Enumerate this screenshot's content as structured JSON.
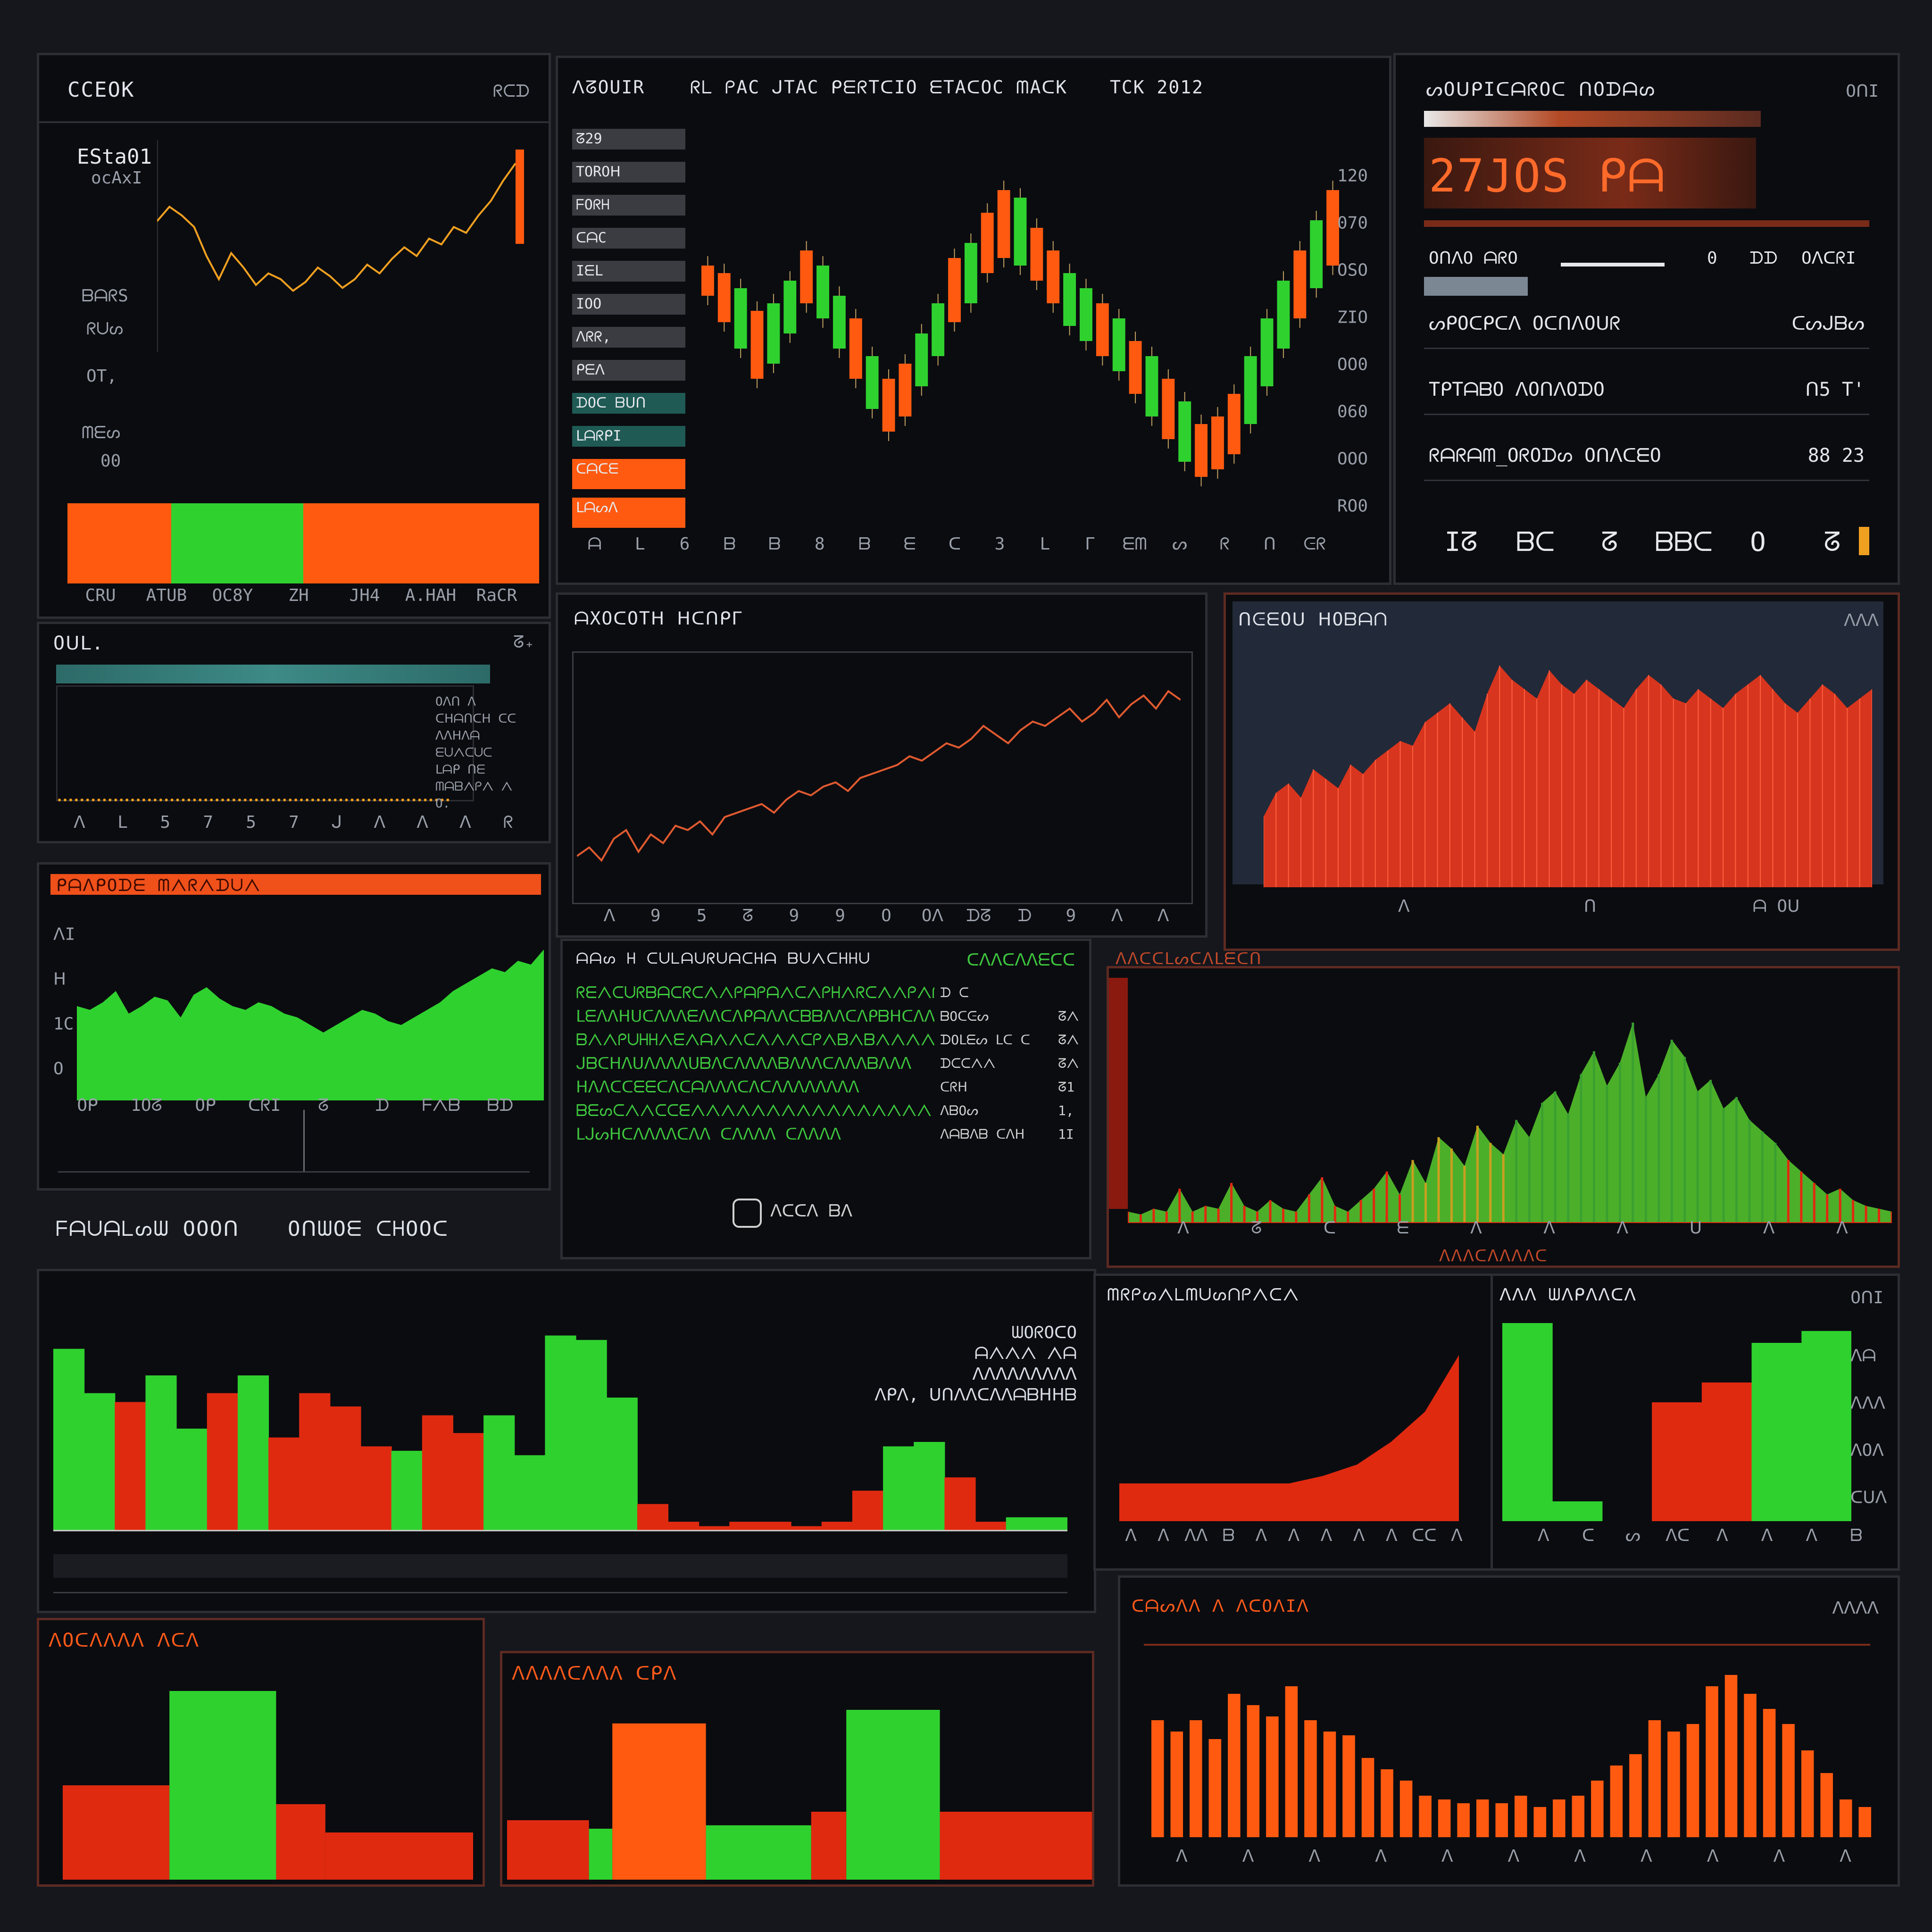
{
  "palette": {
    "green": "#2fd12f",
    "orange": "#ff5a10",
    "red": "#e02a10",
    "gold": "#f0a020",
    "panel_bg": "#0b0c10",
    "page_bg": "#15171d"
  },
  "p1": {
    "title": "CCEOK",
    "tag": "ᖇᑕᗪ",
    "label_a": "ESta01",
    "label_b": "ocAxI",
    "label_c": "ᗷᗩᖇS",
    "label_d": "ᖇᑌᔕ",
    "label_e": "OT,",
    "label_f": "ᗰᗴᔕ",
    "label_g": "00",
    "xticks": [
      "CRU",
      "ATUB",
      "OC8Y",
      "ZH",
      "JH4",
      "A.HAH",
      "RaCR"
    ],
    "line_values": [
      42,
      47,
      44,
      40,
      30,
      22,
      31,
      26,
      20,
      24,
      22,
      18,
      21,
      26,
      23,
      19,
      22,
      27,
      24,
      29,
      33,
      30,
      36,
      34,
      40,
      38,
      44,
      49,
      56,
      62
    ],
    "bars": [
      {
        "c": "orange",
        "w": 0.22
      },
      {
        "c": "green",
        "w": 0.28
      },
      {
        "c": "orange",
        "w": 0.5
      }
    ]
  },
  "p2": {
    "title_left": "ᐱᘔOUIR",
    "title_main": "ᖇᒪ ᑭAC ᒍTAC ᑭᗴᖇTᑕIO ᗴTAᑕOC ᗰAᑕK",
    "title_right": "TCK 2012",
    "sidebar": [
      "ᘔ29",
      "TOROᕼ",
      "ᖴOᖇᕼ",
      "ᑕᗩC",
      "IᗴL",
      "IOO",
      "ᐱᖇᖇ,",
      "ᑭᗴᐱ",
      "ᗪOᑕ ᗷᑌᑎ",
      "ᒪᗩᖇᑭI",
      "ᑕᗩᑕᗴ",
      "ᒪᗩᔕᐱ"
    ],
    "yticks": [
      "120",
      "070",
      "OSO",
      "ZIO",
      "OO0",
      "060",
      "OOO",
      "RO0"
    ],
    "xticks": [
      "ᗩ",
      "ᒪ",
      "6",
      "ᗷ",
      "ᗷ",
      "8",
      "ᗷ",
      "ᗴ",
      "ᑕ",
      "3",
      "ᒪ",
      "ᒥ",
      "ᗴᗰ",
      "ᔕ",
      "ᖇ",
      "ᑎ",
      "ᕮᖇ"
    ],
    "candles": [
      [
        62,
        70
      ],
      [
        55,
        68
      ],
      [
        48,
        64
      ],
      [
        40,
        58
      ],
      [
        44,
        60
      ],
      [
        52,
        66
      ],
      [
        60,
        74
      ],
      [
        56,
        70
      ],
      [
        48,
        62
      ],
      [
        40,
        56
      ],
      [
        32,
        46
      ],
      [
        26,
        40
      ],
      [
        30,
        44
      ],
      [
        38,
        52
      ],
      [
        46,
        60
      ],
      [
        55,
        72
      ],
      [
        60,
        76
      ],
      [
        68,
        84
      ],
      [
        72,
        90
      ],
      [
        70,
        88
      ],
      [
        66,
        80
      ],
      [
        60,
        74
      ],
      [
        54,
        68
      ],
      [
        50,
        64
      ],
      [
        46,
        60
      ],
      [
        42,
        56
      ],
      [
        36,
        50
      ],
      [
        30,
        46
      ],
      [
        24,
        40
      ],
      [
        18,
        34
      ],
      [
        14,
        28
      ],
      [
        16,
        30
      ],
      [
        20,
        36
      ],
      [
        28,
        46
      ],
      [
        38,
        56
      ],
      [
        48,
        66
      ],
      [
        56,
        74
      ],
      [
        64,
        82
      ],
      [
        70,
        90
      ]
    ],
    "candle_colors": [
      "orange",
      "orange",
      "green",
      "orange",
      "green",
      "green",
      "orange",
      "green",
      "green",
      "orange",
      "green",
      "orange",
      "orange",
      "green",
      "green",
      "orange",
      "green",
      "orange",
      "orange",
      "green",
      "orange",
      "orange",
      "green",
      "green",
      "orange",
      "green",
      "orange",
      "green",
      "orange",
      "green",
      "orange",
      "orange",
      "orange",
      "green",
      "green",
      "green",
      "orange",
      "green",
      "orange"
    ]
  },
  "p3": {
    "title": "ᔕOᑌᑭIᑕᗩᖇOᑕ ᑎOᗪᗩᔕ",
    "tag": "OᑎI",
    "big": "27JOS ᑭᗩ",
    "row0_left": "OᑎᐱO ᗩᖇO",
    "row0_mid": "0",
    "row0_mid2": "ᗪᗪ",
    "row0_right": "OᐱᑕᖇI",
    "rows": [
      {
        "label": "ᔕᑭOᑕᑭᑕᐱ OᑕᑎᐱOᑌᖇ",
        "value": "ᑕᔕᒍᗷᔕ"
      },
      {
        "label": "TᑭTᗩᗷO ᐱOᑎᐱOᗪO",
        "value": "ᑎ5 T'"
      },
      {
        "label": "ᖇᗩᖇᗩᗰ_OᖇOᗪᔕ OᑎᐱᑕᗴO",
        "value": "88 23"
      }
    ],
    "glyphs": [
      "Iᘔ",
      "ᗷᑕ",
      "ᘔ",
      "ᗷᗷᑕ",
      "O",
      "ᘔ"
    ]
  },
  "p4": {
    "title": "Oᑌᒪ.",
    "tag": "ᘔ₊",
    "items": [
      "Oᐱᑎ ᐱ",
      "ᑕᕼᗩᑎᑕᕼ ᑕᑕ",
      "ᐱᐱᕼᐱᗩ",
      "ᗴᑌᐱᑕᑌᑕ",
      "ᒪᗩᑭ ᑎᗴ",
      "ᗰᗩᗷᐱᑭᐱ ᐱ",
      "O."
    ],
    "xticks": [
      "ᐱ",
      "ᒪ",
      "5",
      "7",
      "5",
      "7",
      "ᒍ",
      "ᐱ",
      "ᐱ",
      "ᐱ",
      "ᖇ"
    ]
  },
  "p5": {
    "title": "ᑭᗩᐱᑭOᗪᗴ ᗰᐱᖇᐱᗪᑌᐱ",
    "ticks_left": [
      "ᐱI",
      "ᕼ",
      "1C",
      "O"
    ],
    "xticks": [
      "Oᑭ",
      "1Oᘔ",
      "Oᑭ",
      "ᑕᖇI",
      "ᘔ",
      "ᗪ",
      "ᖴᐱᗷ",
      "ᗷᗪ"
    ],
    "values": [
      50,
      48,
      52,
      58,
      46,
      50,
      55,
      53,
      44,
      56,
      60,
      54,
      50,
      48,
      52,
      50,
      46,
      44,
      40,
      36,
      40,
      44,
      48,
      46,
      42,
      40,
      44,
      48,
      52,
      58,
      62,
      66,
      70,
      68,
      74,
      72,
      80
    ]
  },
  "p6": {
    "title": "ᗩXOᑕOTᕼ ᕼᑕᑎᑭᒥ",
    "values": [
      10,
      14,
      8,
      18,
      22,
      12,
      20,
      16,
      24,
      22,
      26,
      20,
      28,
      30,
      32,
      34,
      30,
      36,
      40,
      38,
      42,
      44,
      40,
      46,
      48,
      50,
      52,
      56,
      54,
      58,
      62,
      60,
      64,
      70,
      66,
      62,
      68,
      72,
      70,
      74,
      78,
      72,
      76,
      82,
      74,
      80,
      84,
      78,
      86,
      82
    ],
    "xticks": [
      "ᐱ",
      "9",
      "5",
      "ᘔ",
      "9",
      "9",
      "O",
      "Oᐱ",
      "ᗪᘔ",
      "ᗪ",
      "9",
      "ᐱ",
      "ᐱ"
    ]
  },
  "p7": {
    "title": "ᑎᕮᗴOᑌ ᕼOᗷᗩᑎ",
    "tag": "ᐱᐱᐱ",
    "xticks": [
      "ᐱ",
      "ᑎ",
      "ᗩ Oᑌ"
    ],
    "values": [
      30,
      40,
      44,
      38,
      50,
      46,
      42,
      52,
      48,
      54,
      58,
      62,
      60,
      70,
      74,
      78,
      72,
      66,
      82,
      94,
      88,
      84,
      80,
      92,
      86,
      82,
      88,
      84,
      80,
      76,
      84,
      90,
      86,
      80,
      78,
      84,
      80,
      76,
      82,
      86,
      90,
      84,
      78,
      74,
      80,
      86,
      82,
      76,
      80,
      84
    ]
  },
  "p8": {
    "title": "ᗩᗩᔕ ᕼ ᑕᑌᒪᗩᑌᖇᑌᗩᑕᕼᗩ ᗷᑌᐱᑕᕼᕼᑌ",
    "tag": "ᑕᐱᐱᑕᐱᐱᗴᑕᑕ",
    "lines": [
      {
        "g": "ᖇᗴᐱᑕᑌᖇᗷᗩᑕᖇᑕᐱᐱᑭᗩᑭᗩᐱᑕᐱᑭᕼᐱᖇᑕᐱᐱᑭᐱᑭᐱᕼᑕᐱ",
        "r": "ᗪ ᑕ",
        "v": ""
      },
      {
        "g": "ᒪᗴᐱᐱᕼᑌᑕᐱᐱᐱᗴᐱᐱᑕᐱᑭᗩᐱᐱᑕᗷᗷᐱᐱᑕᐱᑭᗷᕼᑕᐱᐱ",
        "r": "ᗷOᑕᕮᔕ",
        "v": "ᘔᐱ"
      },
      {
        "g": "ᗷᐱᐱᑭᑌᕼᕼᐱᗴᐱᗩᐱᐱᑕᐱᐱᐱᑕᑭᐱᗷᐱᗷᐱᐱᐱᐱᗩᐱᐱ",
        "r": "ᗪOᒪᗴᔕ ᒪᑕ ᑕ",
        "v": "ᘔᐱ"
      },
      {
        "g": "ᒍᗷᑕᕼᐱᑌᐱᐱᐱᐱᑌᗷᐱᑕᐱᐱᐱᐱᗷᐱᐱᐱᑕᐱᐱᐱᗷᐱᐱᐱ",
        "r": "ᗪᑕᑕᐱᐱ",
        "v": "ᘔᐱ"
      },
      {
        "g": "ᕼᐱᐱᑕᑕᗴᗴᑕᐱᑕᗩᐱᐱᐱᑕᐱᑕᐱᐱᐱᐱᐱᐱᐱᐱ",
        "r": "ᑕᖇᕼ",
        "v": "ᘔ1"
      },
      {
        "g": "ᗷᗴᔕᑕᐱᐱᑕᑕᗴᐱᐱᐱᐱᐱᐱᐱᐱᐱᐱᐱᐱᐱᐱᐱᐱ",
        "r": "ᐱᗷOᔕ",
        "v": "1,"
      },
      {
        "g": "ᒪᒍᔕᕼᑕᐱᐱᐱᐱᑕᐱᐱ ᑕᐱᐱᐱᐱ ᑕᐱᐱᐱᐱ",
        "r": "ᐱᗩᗷᐱᗷ ᑕᐱᕼ",
        "v": "1I"
      }
    ],
    "footer": "ᐱᑕᑕᐱ ᗷᐱ"
  },
  "p9": {
    "title": "ᐱᐱᑕᑕᒪᔕᑕᐱᒪᗴᑕᑎ",
    "footer": "ᐱᐱᐱᑕᐱᐱᐱᐱᑕ",
    "values": [
      4,
      3,
      5,
      4,
      12,
      4,
      6,
      5,
      14,
      6,
      4,
      8,
      5,
      4,
      10,
      16,
      6,
      4,
      8,
      12,
      18,
      10,
      22,
      14,
      30,
      26,
      20,
      34,
      28,
      24,
      36,
      30,
      42,
      46,
      38,
      52,
      60,
      48,
      56,
      70,
      44,
      52,
      64,
      58,
      46,
      50,
      40,
      44,
      36,
      32,
      28,
      22,
      18,
      14,
      10,
      12,
      8,
      6,
      5,
      4
    ],
    "colors_split": [
      0.36,
      0.5
    ],
    "xticks": [
      "ᐱ",
      "ᘔ",
      "ᑕ",
      "ᗴ",
      "ᐱ",
      "ᐱ",
      "ᐱ",
      "ᑌ",
      "ᐱ",
      "ᐱ"
    ]
  },
  "p10": {
    "title_a": "ᖴᗩᑌᗩᒪᔕᗯ OOOᑎ",
    "title_b": "OᑎᗯOᗴ ᑕᕼOOᑕ",
    "legend": [
      "ᗯOᖇOᑕO",
      "ᗩᐱᐱᐱ ᐱᗩ",
      "ᐱᐱᐱᐱᐱᐱᐱᐱᐱ",
      "ᐱᑭᐱ, ᑌᑎᐱᐱᑕᐱᐱᗩᗷᕼᕼᗷ"
    ],
    "values": [
      82,
      62,
      58,
      70,
      46,
      62,
      70,
      42,
      62,
      56,
      38,
      36,
      52,
      44,
      52,
      34,
      88,
      86,
      60,
      12,
      4,
      2,
      4,
      4,
      2,
      4,
      18,
      38,
      40,
      24,
      4,
      6,
      6
    ],
    "colors": [
      "green",
      "green",
      "red",
      "green",
      "green",
      "red",
      "green",
      "red",
      "red",
      "red",
      "red",
      "green",
      "red",
      "red",
      "green",
      "green",
      "green",
      "green",
      "green",
      "red",
      "red",
      "red",
      "red",
      "red",
      "red",
      "red",
      "red",
      "green",
      "green",
      "red",
      "red",
      "green",
      "green"
    ]
  },
  "p11": {
    "title": "ᗰᖇᑭᔕᐱᒪᗰᑌᔕᑎᑭᐱᑕᐱ",
    "xticks": [
      "ᐱ",
      "ᐱ",
      "ᐱᐱ",
      "ᗷ",
      "ᐱ",
      "ᐱ",
      "ᐱ",
      "ᐱ",
      "ᐱ",
      "ᑕᑕ",
      "ᐱ"
    ],
    "values": [
      20,
      20,
      20,
      20,
      20,
      20,
      24,
      30,
      42,
      58,
      88
    ]
  },
  "p12": {
    "title": "ᐱᐱᐱ ᗯᐱᑭᐱᐱᑕᐱ",
    "tag": "OᑎI",
    "yticks": [
      "ᐱᗩ",
      "ᐱᐱᐱ",
      "ᐱOᐱ",
      "ᑕᑌᐱ"
    ],
    "xticks": [
      "ᐱ",
      "ᑕ",
      "ᔕ",
      "ᐱᑕ",
      "ᐱ",
      "ᐱ",
      "ᐱ",
      "ᗷ"
    ],
    "values": [
      [
        100,
        "green"
      ],
      [
        10,
        "green"
      ],
      [
        0,
        "red"
      ],
      [
        60,
        "red"
      ],
      [
        70,
        "red"
      ],
      [
        90,
        "green"
      ],
      [
        96,
        "green"
      ]
    ]
  },
  "p13": {
    "title": "ᑕᗩᔕᐱᐱ ᐱ ᐱᑕOᐱIᐱ",
    "tag": "ᐱᐱᐱᐱ",
    "xticks": [
      "ᐱ",
      "ᐱ",
      "ᐱ",
      "ᐱ",
      "ᐱ",
      "ᐱ",
      "ᐱ",
      "ᐱ",
      "ᐱ",
      "ᐱ",
      "ᐱ"
    ],
    "values": [
      62,
      56,
      62,
      52,
      76,
      70,
      64,
      80,
      62,
      56,
      54,
      42,
      36,
      30,
      22,
      20,
      18,
      20,
      18,
      22,
      16,
      20,
      22,
      30,
      38,
      44,
      62,
      56,
      60,
      80,
      86,
      76,
      68,
      60,
      46,
      34,
      20,
      16
    ]
  },
  "p14": {
    "title": "ᐱOᑕᐱᐱᐱᐱ ᐱᑕᐱ",
    "blocks": [
      {
        "c": "red",
        "x": 0,
        "w": 0.26,
        "h": 0.5
      },
      {
        "c": "green",
        "x": 0.26,
        "w": 0.26,
        "h": 1.0
      },
      {
        "c": "red",
        "x": 0.52,
        "w": 0.12,
        "h": 0.4
      },
      {
        "c": "red",
        "x": 0.64,
        "w": 0.36,
        "h": 0.25
      }
    ]
  },
  "p15": {
    "title": "ᐱᐱᐱᐱᑕᐱᐱᐱ ᑕᑭᐱ",
    "blocks": [
      {
        "c": "red",
        "x": 0,
        "w": 0.14,
        "h": 0.35
      },
      {
        "c": "green",
        "x": 0.14,
        "w": 0.04,
        "h": 0.3
      },
      {
        "c": "orange",
        "x": 0.18,
        "w": 0.16,
        "h": 0.92
      },
      {
        "c": "green",
        "x": 0.34,
        "w": 0.18,
        "h": 0.32
      },
      {
        "c": "red",
        "x": 0.52,
        "w": 0.06,
        "h": 0.4
      },
      {
        "c": "green",
        "x": 0.58,
        "w": 0.16,
        "h": 1.0
      },
      {
        "c": "red",
        "x": 0.74,
        "w": 0.26,
        "h": 0.4
      }
    ]
  }
}
